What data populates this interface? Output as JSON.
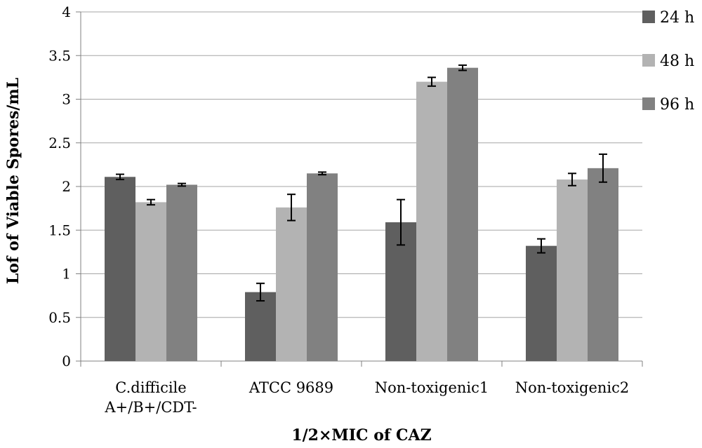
{
  "chart_data": {
    "type": "bar",
    "title": "",
    "xlabel": "1/2×MIC of CAZ",
    "ylabel": "Lof of Viable Spores/mL",
    "ylim": [
      0,
      4
    ],
    "yticks": [
      "0",
      "0.5",
      "1",
      "1.5",
      "2",
      "2.5",
      "3",
      "3.5",
      "4"
    ],
    "grid": "horizontal",
    "legend_position": "top-right",
    "categories": [
      [
        "C.difficile",
        "A+/B+/CDT-"
      ],
      [
        "ATCC 9689"
      ],
      [
        "Non-toxigenic1"
      ],
      [
        "Non-toxigenic2"
      ]
    ],
    "series": [
      {
        "name": "24 h",
        "color": "#5f5f5f",
        "values": [
          2.11,
          0.79,
          1.59,
          1.32
        ],
        "errors": [
          0.03,
          0.1,
          0.26,
          0.08
        ]
      },
      {
        "name": "48 h",
        "color": "#b3b3b3",
        "values": [
          1.82,
          1.76,
          3.2,
          2.08
        ],
        "errors": [
          0.03,
          0.15,
          0.05,
          0.07
        ]
      },
      {
        "name": "96 h",
        "color": "#818181",
        "values": [
          2.02,
          2.15,
          3.36,
          2.21
        ],
        "errors": [
          0.015,
          0.015,
          0.03,
          0.16
        ]
      }
    ]
  }
}
